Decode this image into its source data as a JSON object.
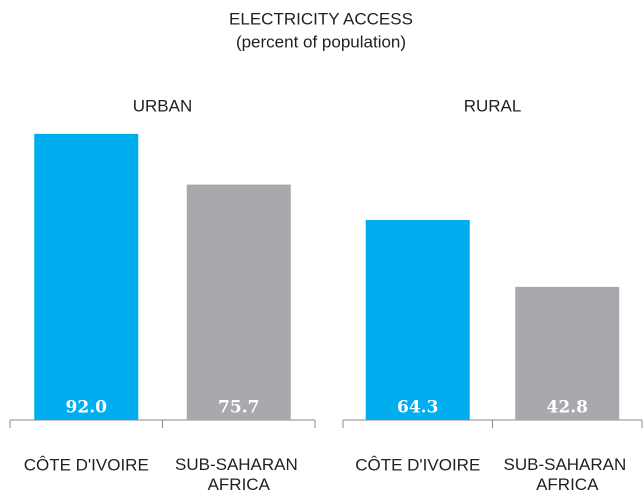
{
  "title": "ELECTRICITY ACCESS",
  "subtitle": "(percent of population)",
  "chart_data": [
    {
      "type": "bar",
      "title": "URBAN",
      "categories": [
        "CÔTE D'IVOIRE",
        "SUB-SAHARAN AFRICA"
      ],
      "values": [
        92,
        75.7
      ],
      "value_labels": [
        "92.0",
        "75.7"
      ],
      "colors": [
        "#00aeef",
        "#a7a9ac"
      ],
      "ylim": [
        0,
        100
      ]
    },
    {
      "type": "bar",
      "title": "RURAL",
      "categories": [
        "CÔTE D'IVOIRE",
        "SUB-SAHARAN AFRICA"
      ],
      "values": [
        64.3,
        42.8
      ],
      "value_labels": [
        "64.3",
        "42.8"
      ],
      "colors": [
        "#00aeef",
        "#a7a9ac"
      ],
      "ylim": [
        0,
        100
      ]
    }
  ]
}
